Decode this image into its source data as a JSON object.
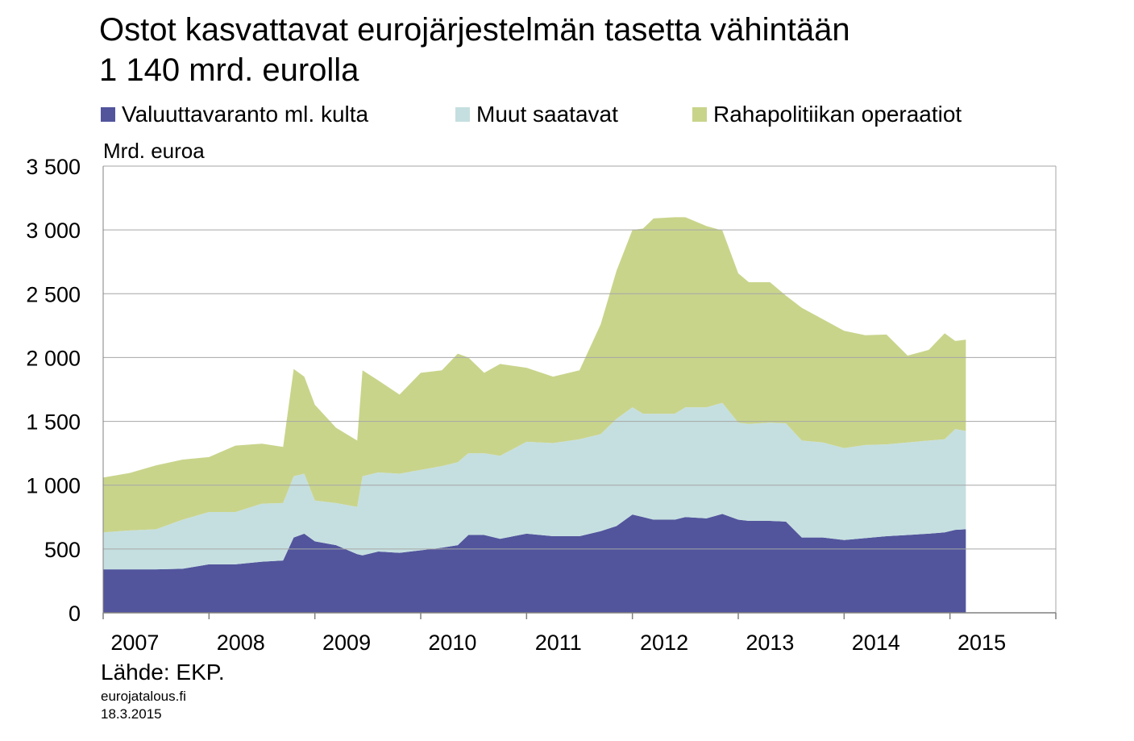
{
  "title_lines": [
    "Ostot kasvattavat eurojärjestelmän tasetta vähintään",
    "1 140 mrd. eurolla"
  ],
  "unit_label": "Mrd. euroa",
  "source": "Lähde: EKP.",
  "site": "eurojatalous.fi",
  "date": "18.3.2015",
  "colors": {
    "reserves": "#52559c",
    "other_claims": "#c5dfe0",
    "monetary_operations": "#c9d48b",
    "grid": "#a6a6a6",
    "axis": "#808080"
  },
  "chart_data": {
    "type": "area",
    "stacked": true,
    "xlabel": "",
    "ylabel": "Mrd. euroa",
    "ylim": [
      0,
      3500
    ],
    "yticks": [
      0,
      500,
      1000,
      1500,
      2000,
      2500,
      3000,
      3500
    ],
    "ytick_labels": [
      "0",
      "500",
      "1 000",
      "1 500",
      "2 000",
      "2 500",
      "3 000",
      "3 500"
    ],
    "xlim": [
      2007.0,
      2016.0
    ],
    "xtick_labels": [
      "2007",
      "2008",
      "2009",
      "2010",
      "2011",
      "2012",
      "2013",
      "2014",
      "2015"
    ],
    "grid": true,
    "legend_position": "top",
    "x": [
      2007.0,
      2007.25,
      2007.5,
      2007.75,
      2008.0,
      2008.25,
      2008.5,
      2008.7,
      2008.8,
      2008.9,
      2009.0,
      2009.2,
      2009.4,
      2009.45,
      2009.6,
      2009.8,
      2010.0,
      2010.2,
      2010.35,
      2010.45,
      2010.6,
      2010.75,
      2011.0,
      2011.25,
      2011.5,
      2011.7,
      2011.85,
      2012.0,
      2012.1,
      2012.2,
      2012.4,
      2012.5,
      2012.7,
      2012.85,
      2013.0,
      2013.1,
      2013.3,
      2013.45,
      2013.6,
      2013.8,
      2014.0,
      2014.2,
      2014.4,
      2014.6,
      2014.8,
      2014.95,
      2015.05,
      2015.15
    ],
    "series": [
      {
        "name": "Valuuttavaranto ml. kulta",
        "values": [
          340,
          340,
          340,
          345,
          380,
          380,
          400,
          410,
          590,
          620,
          560,
          530,
          460,
          450,
          480,
          470,
          490,
          510,
          530,
          610,
          610,
          580,
          620,
          600,
          600,
          640,
          680,
          770,
          750,
          730,
          730,
          750,
          740,
          775,
          730,
          720,
          720,
          715,
          590,
          590,
          570,
          585,
          600,
          610,
          620,
          630,
          650,
          655
        ]
      },
      {
        "name": "Muut saatavat",
        "values": [
          290,
          305,
          315,
          385,
          410,
          410,
          455,
          450,
          480,
          470,
          320,
          330,
          370,
          620,
          620,
          620,
          630,
          640,
          650,
          640,
          640,
          650,
          720,
          730,
          760,
          760,
          840,
          840,
          810,
          830,
          830,
          860,
          870,
          870,
          760,
          760,
          770,
          770,
          760,
          745,
          720,
          730,
          720,
          725,
          730,
          730,
          790,
          770
        ]
      },
      {
        "name": "Rahapolitiikan operaatiot",
        "values": [
          430,
          450,
          500,
          470,
          430,
          520,
          470,
          440,
          840,
          760,
          750,
          590,
          520,
          830,
          720,
          620,
          760,
          750,
          850,
          750,
          630,
          720,
          580,
          520,
          540,
          860,
          1160,
          1390,
          1450,
          1530,
          1540,
          1490,
          1420,
          1350,
          1170,
          1110,
          1100,
          1000,
          1040,
          965,
          920,
          860,
          860,
          680,
          710,
          830,
          690,
          715
        ]
      }
    ]
  }
}
